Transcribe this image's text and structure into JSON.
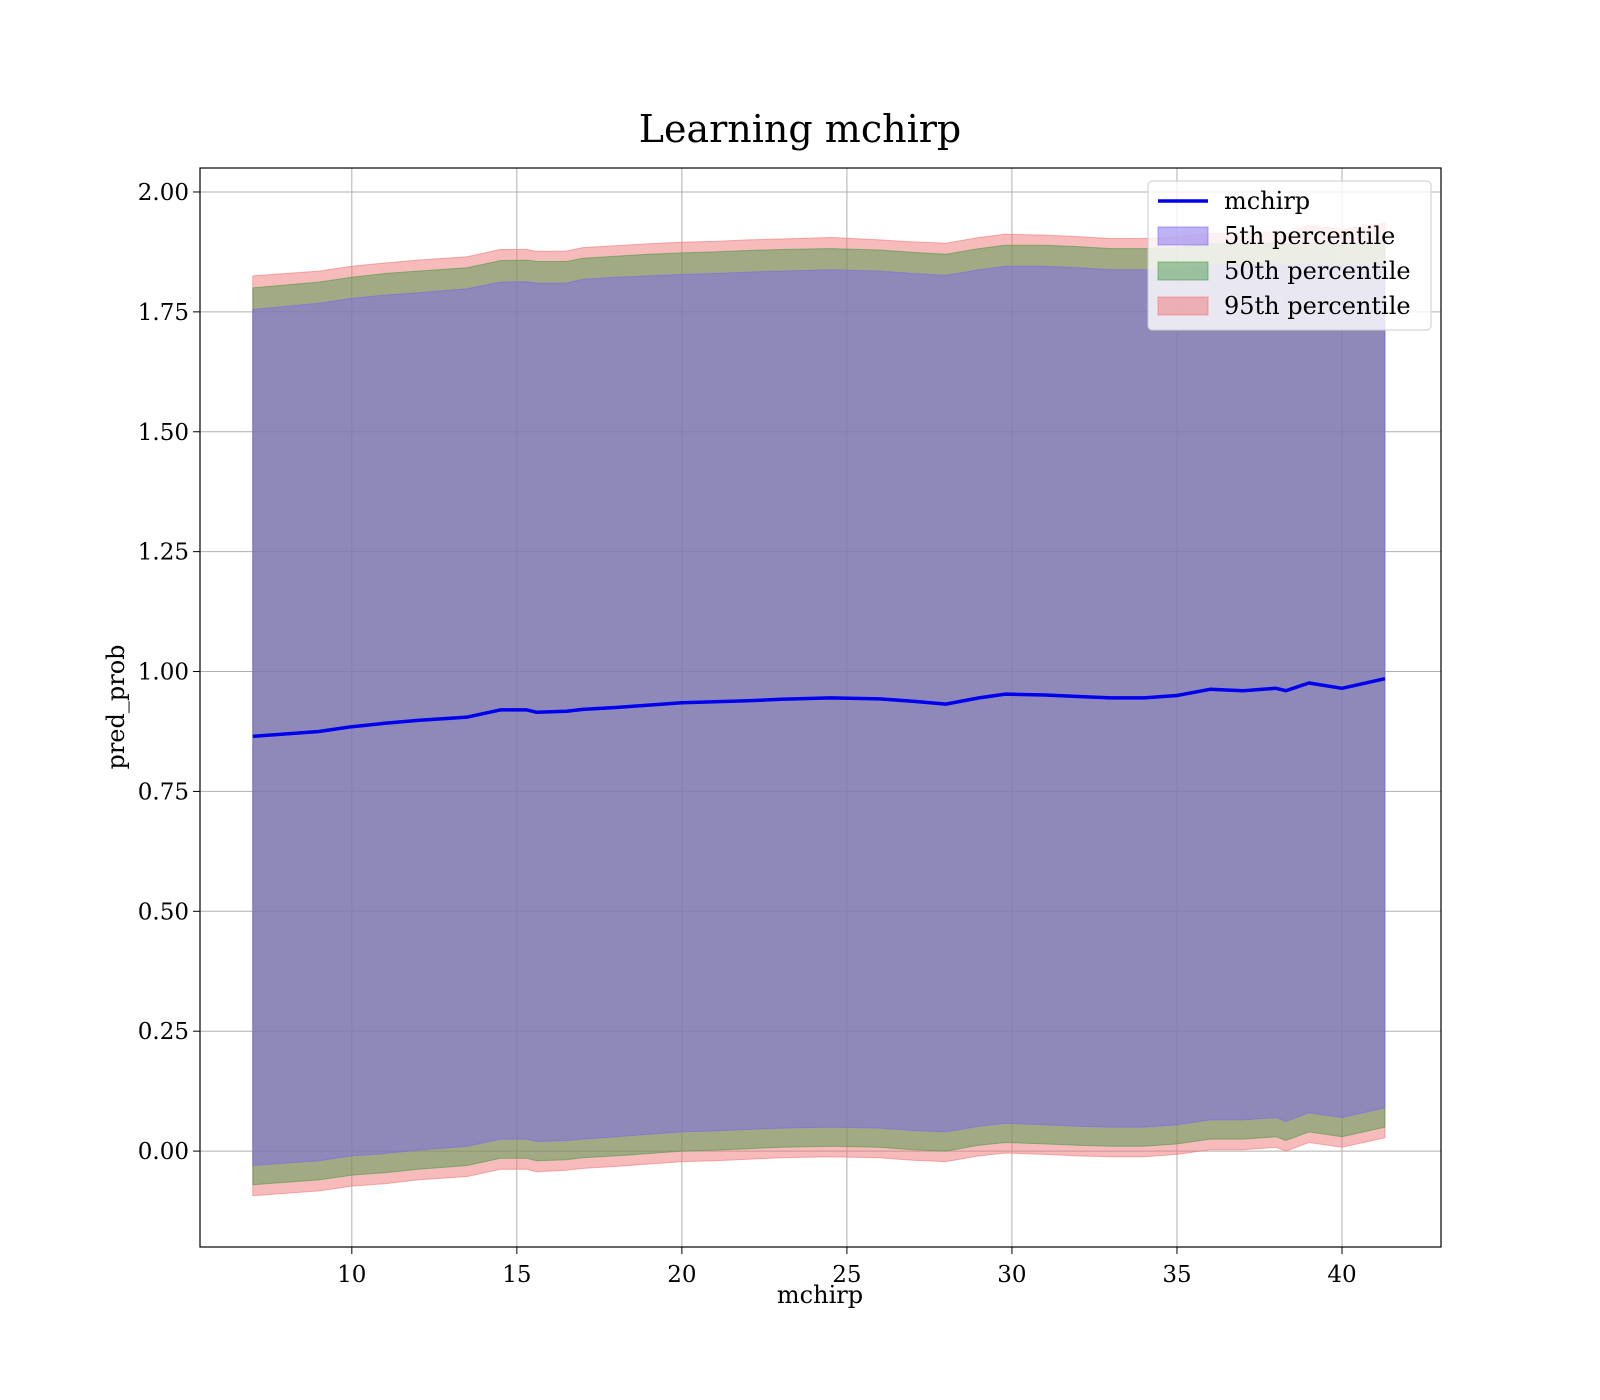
{
  "chart_data": {
    "type": "line",
    "title": "Learning mchirp",
    "xlabel": "mchirp",
    "ylabel": "pred_prob",
    "xlim": [
      5.4,
      43.0
    ],
    "ylim": [
      -0.2,
      2.05
    ],
    "xticks": [
      10,
      15,
      20,
      25,
      30,
      35,
      40
    ],
    "yticks": [
      0.0,
      0.25,
      0.5,
      0.75,
      1.0,
      1.25,
      1.5,
      1.75,
      2.0
    ],
    "xtick_labels": [
      "10",
      "15",
      "20",
      "25",
      "30",
      "35",
      "40"
    ],
    "ytick_labels": [
      "0.00",
      "0.25",
      "0.50",
      "0.75",
      "1.00",
      "1.25",
      "1.50",
      "1.75",
      "2.00"
    ],
    "grid": true,
    "legend_position": "top-right",
    "x": [
      7.0,
      9.0,
      10.0,
      11.0,
      12.0,
      13.5,
      14.5,
      15.3,
      15.6,
      16.5,
      17.0,
      18.0,
      19.0,
      20.0,
      21.0,
      22.0,
      23.0,
      24.5,
      26.0,
      27.0,
      28.0,
      29.0,
      29.8,
      31.0,
      32.0,
      33.0,
      34.0,
      35.0,
      36.0,
      37.0,
      38.0,
      38.3,
      39.0,
      40.0,
      41.3
    ],
    "series": [
      {
        "name": "mchirp",
        "style": "line",
        "color": "#0000ee",
        "values": [
          0.865,
          0.875,
          0.885,
          0.892,
          0.898,
          0.905,
          0.92,
          0.92,
          0.915,
          0.917,
          0.921,
          0.925,
          0.93,
          0.935,
          0.937,
          0.939,
          0.942,
          0.945,
          0.943,
          0.938,
          0.932,
          0.945,
          0.953,
          0.951,
          0.948,
          0.945,
          0.945,
          0.95,
          0.963,
          0.96,
          0.965,
          0.96,
          0.976,
          0.965,
          0.985
        ]
      },
      {
        "name": "5th percentile",
        "style": "band",
        "color": "#7b68ee",
        "upper": [
          1.755,
          1.768,
          1.778,
          1.785,
          1.79,
          1.798,
          1.812,
          1.813,
          1.81,
          1.81,
          1.818,
          1.822,
          1.825,
          1.828,
          1.83,
          1.833,
          1.835,
          1.838,
          1.835,
          1.83,
          1.826,
          1.838,
          1.845,
          1.845,
          1.842,
          1.838,
          1.838,
          1.84,
          1.848,
          1.848,
          1.85,
          1.846,
          1.85,
          1.846,
          1.848
        ],
        "lower": [
          -0.03,
          -0.02,
          -0.01,
          -0.005,
          0.002,
          0.01,
          0.025,
          0.025,
          0.02,
          0.022,
          0.025,
          0.03,
          0.035,
          0.04,
          0.042,
          0.045,
          0.048,
          0.05,
          0.048,
          0.043,
          0.04,
          0.052,
          0.058,
          0.055,
          0.052,
          0.05,
          0.05,
          0.055,
          0.065,
          0.065,
          0.07,
          0.062,
          0.08,
          0.07,
          0.09
        ]
      },
      {
        "name": "50th percentile",
        "style": "band",
        "color": "#4d9a4d",
        "upper": [
          1.8,
          1.812,
          1.822,
          1.83,
          1.835,
          1.842,
          1.857,
          1.858,
          1.855,
          1.855,
          1.862,
          1.866,
          1.87,
          1.873,
          1.875,
          1.878,
          1.88,
          1.882,
          1.879,
          1.874,
          1.87,
          1.882,
          1.889,
          1.889,
          1.886,
          1.882,
          1.882,
          1.884,
          1.892,
          1.892,
          1.894,
          1.89,
          1.894,
          1.89,
          1.893
        ],
        "lower": [
          -0.07,
          -0.06,
          -0.05,
          -0.045,
          -0.038,
          -0.03,
          -0.015,
          -0.015,
          -0.02,
          -0.018,
          -0.014,
          -0.01,
          -0.005,
          0.0,
          0.002,
          0.005,
          0.008,
          0.01,
          0.008,
          0.003,
          0.0,
          0.012,
          0.018,
          0.015,
          0.012,
          0.01,
          0.01,
          0.015,
          0.025,
          0.025,
          0.03,
          0.022,
          0.04,
          0.03,
          0.05
        ]
      },
      {
        "name": "95th percentile",
        "style": "band",
        "color": "#f07878",
        "upper": [
          1.825,
          1.835,
          1.845,
          1.852,
          1.858,
          1.865,
          1.88,
          1.88,
          1.876,
          1.877,
          1.884,
          1.888,
          1.892,
          1.895,
          1.897,
          1.9,
          1.902,
          1.905,
          1.9,
          1.896,
          1.893,
          1.905,
          1.912,
          1.91,
          1.907,
          1.903,
          1.903,
          1.906,
          1.914,
          1.914,
          1.917,
          1.913,
          1.93,
          1.922,
          1.935
        ],
        "lower": [
          -0.093,
          -0.083,
          -0.073,
          -0.068,
          -0.06,
          -0.053,
          -0.038,
          -0.038,
          -0.043,
          -0.04,
          -0.036,
          -0.032,
          -0.027,
          -0.022,
          -0.02,
          -0.017,
          -0.014,
          -0.012,
          -0.014,
          -0.019,
          -0.022,
          -0.01,
          -0.004,
          -0.007,
          -0.01,
          -0.012,
          -0.012,
          -0.007,
          0.003,
          0.003,
          0.008,
          0.0,
          0.018,
          0.008,
          0.028
        ]
      }
    ]
  }
}
